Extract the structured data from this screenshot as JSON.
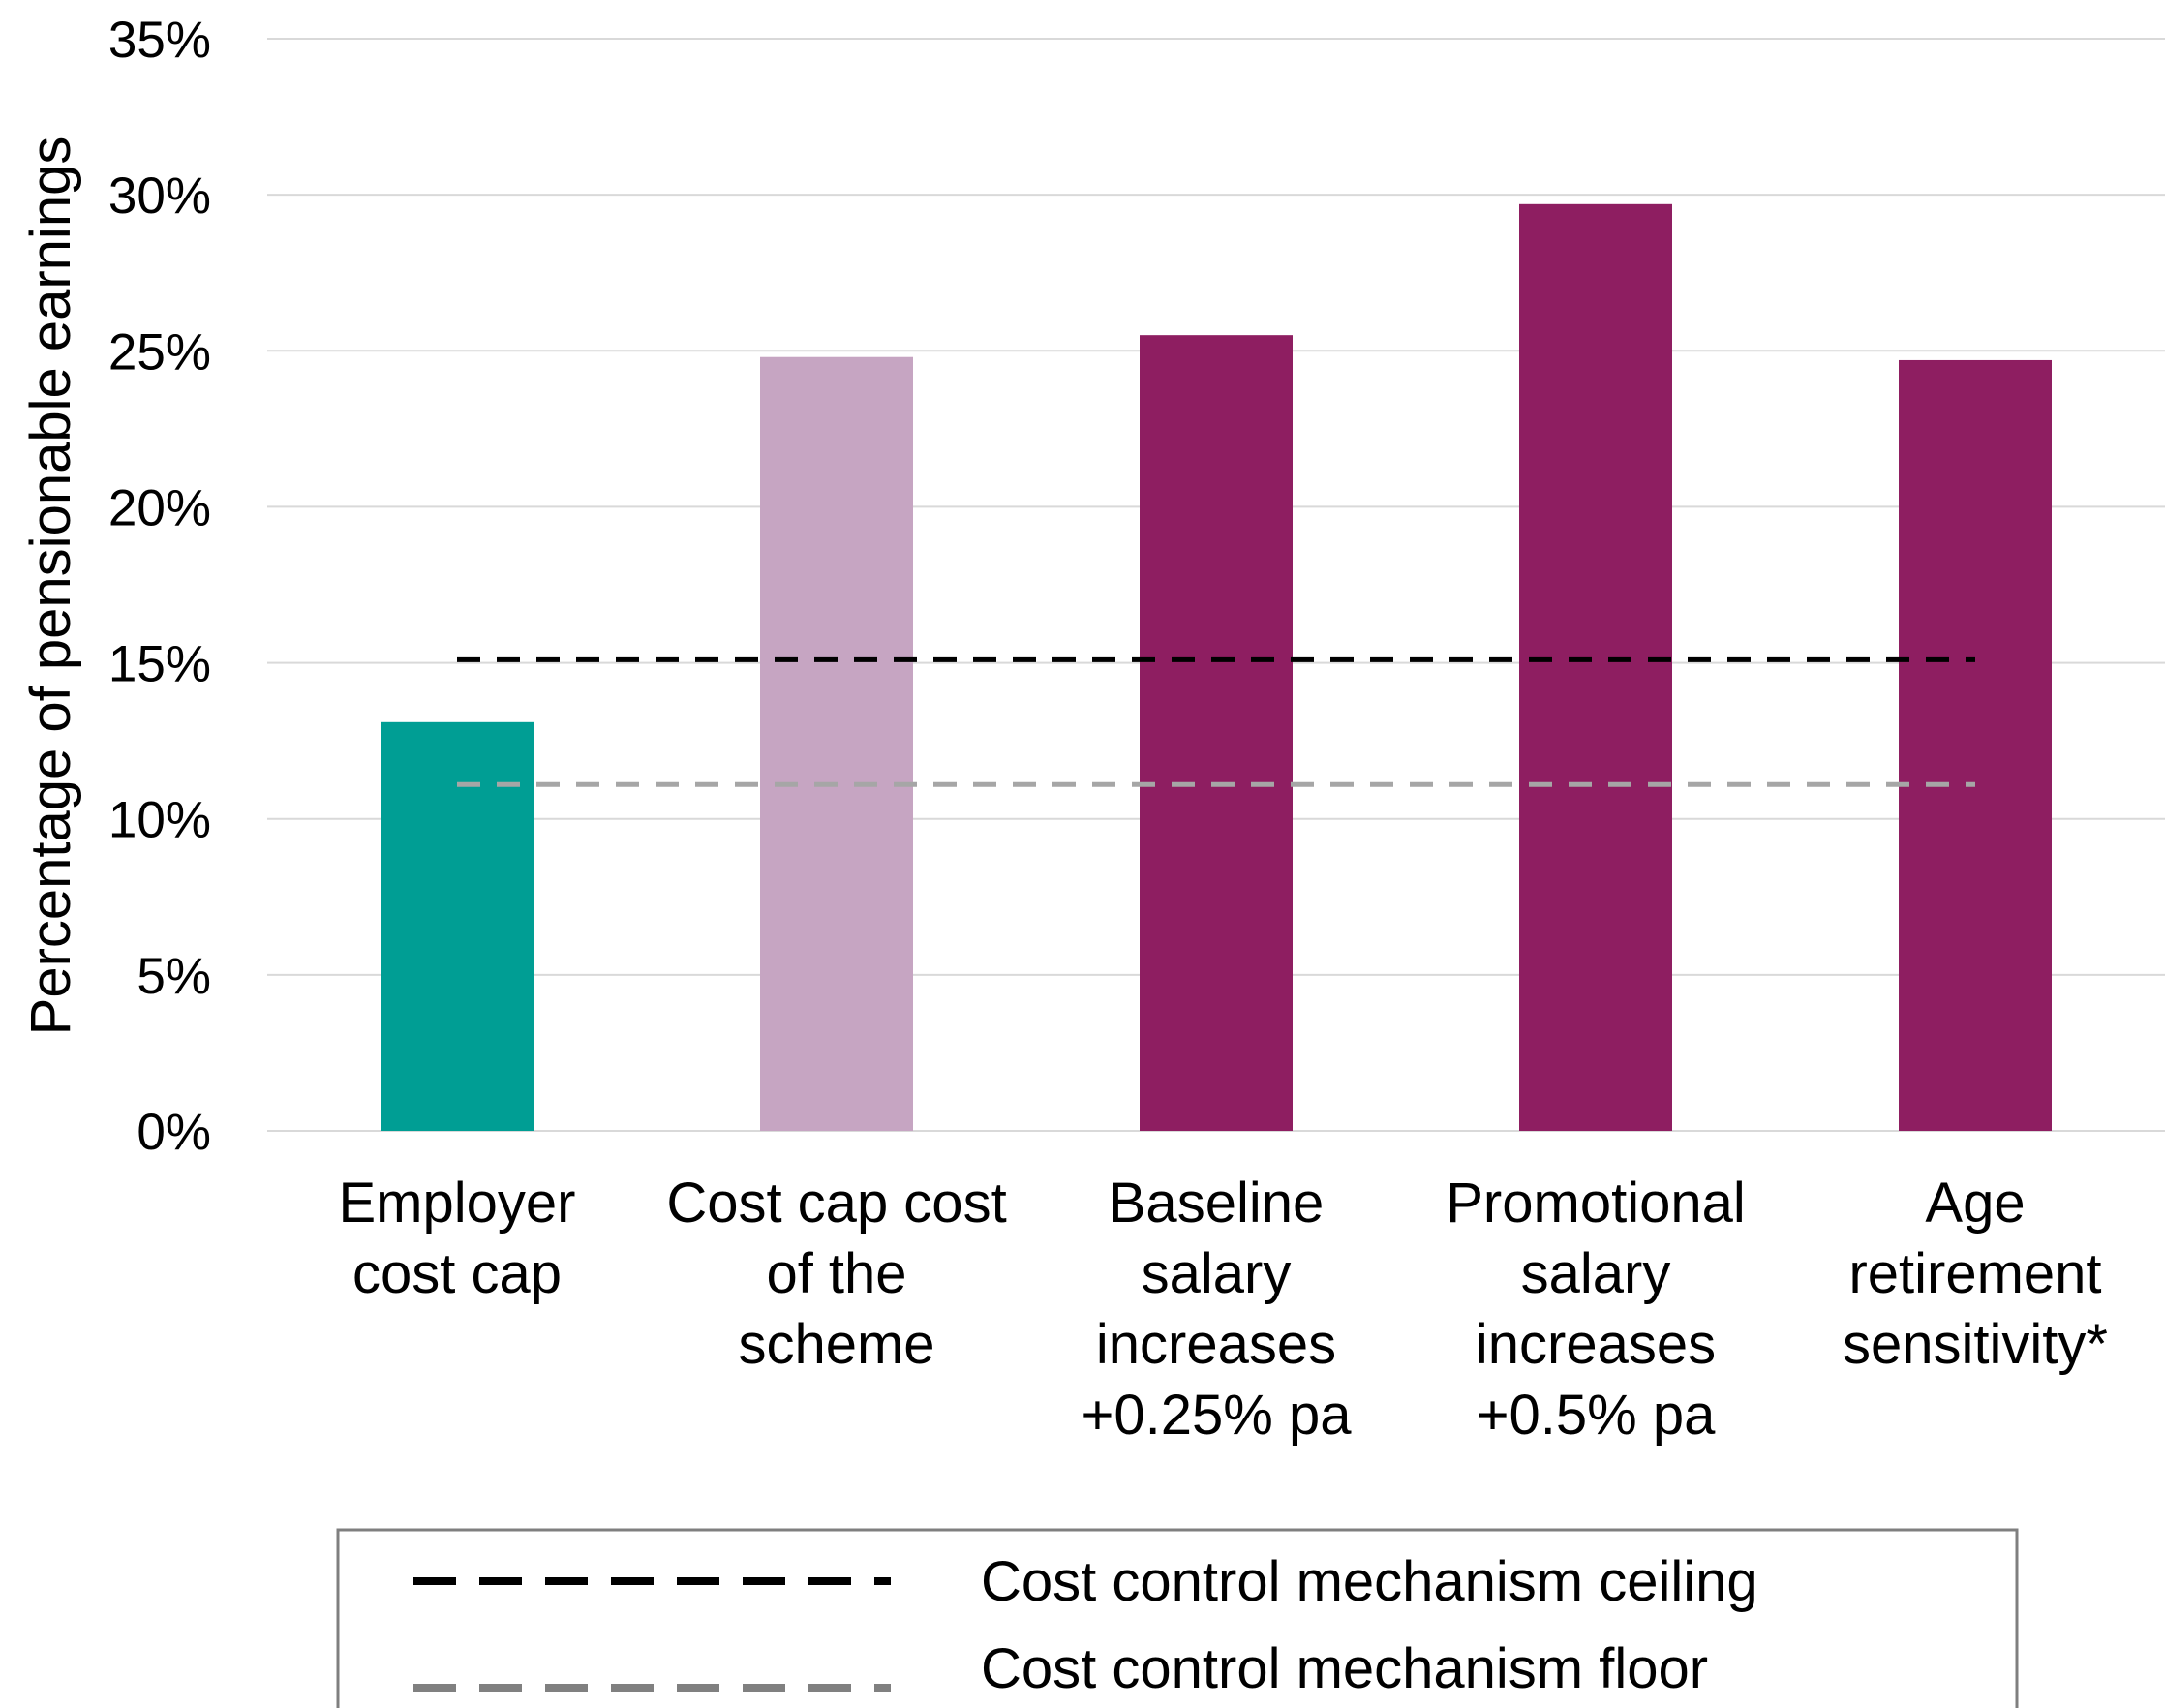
{
  "chart_data": {
    "type": "bar",
    "ylabel": "Percentage of pensionable earnings",
    "ylim": [
      0,
      35
    ],
    "ytick_step": 5,
    "ytick_labels": [
      "0%",
      "5%",
      "10%",
      "15%",
      "20%",
      "25%",
      "30%",
      "35%"
    ],
    "grid": true,
    "categories": [
      [
        "Employer",
        "cost cap"
      ],
      [
        "Cost cap cost",
        "of the",
        "scheme"
      ],
      [
        "Baseline",
        "salary",
        "increases",
        "+0.25% pa"
      ],
      [
        "Promotional",
        "salary",
        "increases",
        "+0.5% pa"
      ],
      [
        "Age",
        "retirement",
        "sensitivity*"
      ]
    ],
    "values": [
      13.1,
      24.8,
      25.5,
      29.7,
      24.7
    ],
    "bar_colors": [
      "#009e94",
      "#c6a5c2",
      "#8e1e61",
      "#8e1e61",
      "#8e1e61"
    ],
    "reference_lines": [
      {
        "name": "Cost control mechanism ceiling",
        "value": 15.1,
        "color": "#000000",
        "style": "dashed"
      },
      {
        "name": "Cost control mechanism floor",
        "value": 11.1,
        "color": "#a6a6a6",
        "style": "dashed"
      }
    ],
    "legend": {
      "position": "bottom",
      "entries": [
        {
          "label": "Cost control mechanism ceiling",
          "color": "#000000"
        },
        {
          "label": "Cost control mechanism floor",
          "color": "#808080"
        }
      ]
    }
  }
}
